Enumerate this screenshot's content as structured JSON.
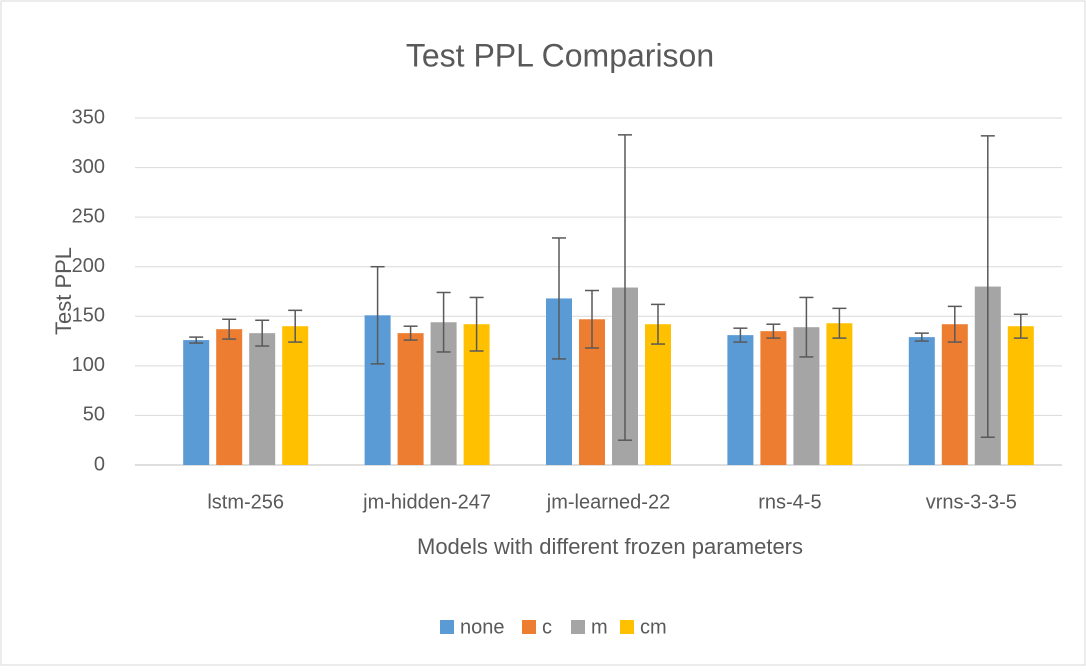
{
  "chart_data": {
    "type": "bar",
    "title": "Test PPL Comparison",
    "x_label": "Models with different frozen parameters",
    "y_label": "Test PPL",
    "categories": [
      "lstm-256",
      "jm-hidden-247",
      "jm-learned-22",
      "rns-4-5",
      "vrns-3-3-5"
    ],
    "series": [
      {
        "name": "none",
        "color": "#5b9bd5",
        "values": [
          126,
          151,
          168,
          131,
          129
        ],
        "errors": [
          3,
          49,
          61,
          7,
          4
        ]
      },
      {
        "name": "c",
        "color": "#ed7d31",
        "values": [
          137,
          133,
          147,
          135,
          142
        ],
        "errors": [
          10,
          7,
          29,
          7,
          18
        ]
      },
      {
        "name": "m",
        "color": "#a5a5a5",
        "values": [
          133,
          144,
          179,
          139,
          180
        ],
        "errors": [
          13,
          30,
          154,
          30,
          152
        ]
      },
      {
        "name": "cm",
        "color": "#ffc000",
        "values": [
          140,
          142,
          142,
          143,
          140
        ],
        "errors": [
          16,
          27,
          20,
          15,
          12
        ]
      }
    ],
    "ylim": [
      0,
      350
    ],
    "yticks": [
      0,
      50,
      100,
      150,
      200,
      250,
      300,
      350
    ],
    "grid": true,
    "legend": "bottom"
  }
}
